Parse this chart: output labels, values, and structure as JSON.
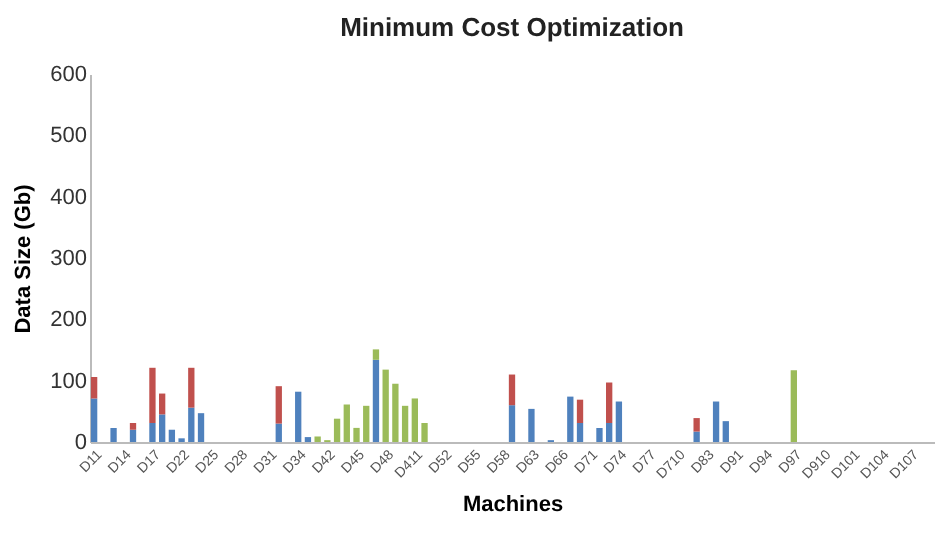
{
  "chart_data": {
    "type": "bar",
    "title": "Minimum Cost Optimization",
    "xlabel": "Machines",
    "ylabel": "Data Size (Gb)",
    "categories": [
      "D11",
      null,
      null,
      "D14",
      null,
      null,
      "D17",
      null,
      null,
      "D22",
      null,
      null,
      "D25",
      null,
      null,
      "D28",
      null,
      null,
      "D31",
      null,
      null,
      "D34",
      null,
      null,
      "D42",
      null,
      null,
      "D45",
      null,
      null,
      "D48",
      null,
      null,
      "D411",
      null,
      null,
      "D52",
      null,
      null,
      "D55",
      null,
      null,
      "D58",
      null,
      null,
      "D63",
      null,
      null,
      "D66",
      null,
      null,
      "D71",
      null,
      null,
      "D74",
      null,
      null,
      "D77",
      null,
      null,
      "D710",
      null,
      null,
      "D83",
      null,
      null,
      "D91",
      null,
      null,
      "D94",
      null,
      null,
      "D97",
      null,
      null,
      "D910",
      null,
      null,
      "D101",
      null,
      null,
      "D104",
      null,
      null,
      "D107",
      null,
      null
    ],
    "series": [
      {
        "color": "#4f81bd",
        "values": [
          71,
          null,
          23,
          null,
          20,
          null,
          31,
          45,
          20,
          6,
          56,
          47,
          null,
          null,
          null,
          null,
          null,
          null,
          null,
          30,
          null,
          82,
          8,
          null,
          null,
          null,
          null,
          null,
          null,
          134,
          null,
          null,
          null,
          null,
          null,
          null,
          null,
          null,
          null,
          null,
          null,
          null,
          null,
          60,
          null,
          54,
          null,
          3,
          null,
          74,
          31,
          null,
          23,
          31,
          66,
          null,
          null,
          null,
          null,
          null,
          null,
          null,
          17,
          null,
          66,
          34,
          null,
          null,
          null,
          null,
          null,
          null,
          null,
          null,
          null,
          null,
          null,
          null,
          null,
          null,
          null,
          null,
          null,
          null,
          null,
          null,
          null
        ]
      },
      {
        "color": "#c0504d",
        "values": [
          35,
          null,
          null,
          null,
          11,
          null,
          90,
          34,
          null,
          null,
          65,
          null,
          null,
          null,
          null,
          null,
          null,
          null,
          null,
          61,
          null,
          null,
          null,
          null,
          null,
          null,
          null,
          null,
          null,
          null,
          null,
          null,
          null,
          null,
          null,
          null,
          null,
          null,
          null,
          null,
          null,
          null,
          null,
          50,
          null,
          null,
          null,
          null,
          null,
          null,
          38,
          null,
          null,
          66,
          null,
          null,
          null,
          null,
          null,
          null,
          null,
          null,
          22,
          null,
          null,
          null,
          null,
          null,
          null,
          null,
          null,
          null,
          null,
          null,
          null,
          null,
          null,
          null,
          null,
          null,
          null,
          null,
          null,
          null,
          null,
          null,
          null
        ]
      },
      {
        "color": "#9bbb59",
        "values": [
          null,
          null,
          null,
          null,
          null,
          null,
          null,
          null,
          null,
          null,
          null,
          null,
          null,
          null,
          null,
          null,
          null,
          null,
          null,
          null,
          null,
          null,
          null,
          9,
          3,
          38,
          61,
          23,
          59,
          17,
          118,
          95,
          59,
          71,
          31,
          null,
          null,
          null,
          null,
          null,
          null,
          null,
          null,
          null,
          null,
          null,
          null,
          null,
          null,
          null,
          null,
          null,
          null,
          null,
          null,
          null,
          null,
          null,
          null,
          null,
          null,
          null,
          null,
          null,
          null,
          null,
          null,
          null,
          null,
          null,
          null,
          null,
          117,
          null,
          null,
          null,
          null,
          null,
          null,
          null,
          null,
          null,
          null,
          null,
          null,
          null,
          null
        ]
      }
    ],
    "stacked": true,
    "ylim": [
      0,
      600
    ],
    "yticks": [
      0,
      100,
      200,
      300,
      400,
      500,
      600
    ],
    "grid": false,
    "legend": false
  }
}
